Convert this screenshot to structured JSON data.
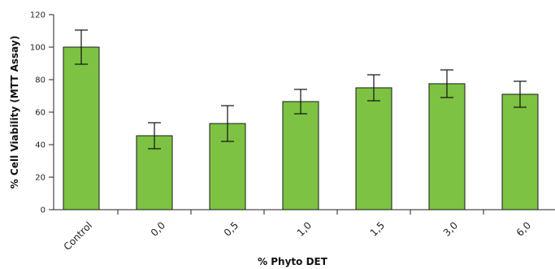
{
  "chart_data": {
    "type": "bar",
    "title": "",
    "xlabel": "% Phyto DET",
    "ylabel": "% Cell Viability (MTT Assay)",
    "ylim": [
      0,
      120
    ],
    "yticks": [
      0,
      20,
      40,
      60,
      80,
      100,
      120
    ],
    "categories": [
      "Control",
      "0,0",
      "0,5",
      "1,0",
      "1,5",
      "3,0",
      "6,0"
    ],
    "values": [
      100,
      45.5,
      53,
      66.5,
      75,
      77.5,
      71
    ],
    "errors": [
      10.5,
      8,
      11,
      7.5,
      8,
      8.5,
      8
    ],
    "error_bars": true,
    "grid": false,
    "legend": "none",
    "bar_color": "#7dc242",
    "bar_edge_color": "#1a1a1a"
  }
}
